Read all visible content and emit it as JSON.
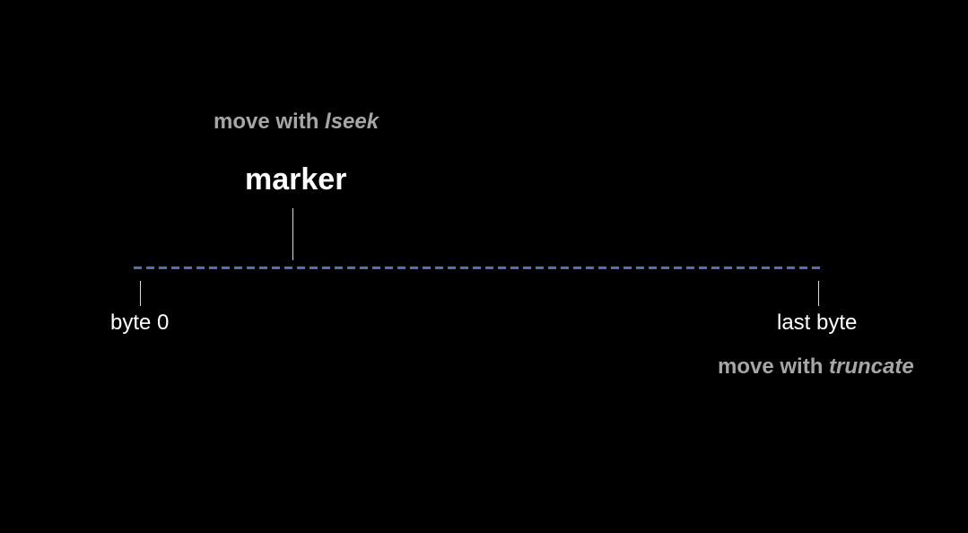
{
  "diagram": {
    "lseek_caption": {
      "prefix": "move with ",
      "function": "lseek"
    },
    "marker_label": "marker",
    "byte0_label": "byte 0",
    "last_byte_label": "last byte",
    "truncate_caption": {
      "prefix": "move with ",
      "function": "truncate"
    },
    "colors": {
      "background": "#000000",
      "file_line": "#4a72c4",
      "caption_gray": "#a6a6a6",
      "label_white": "#ffffff",
      "tick": "#d9d9d9"
    }
  }
}
